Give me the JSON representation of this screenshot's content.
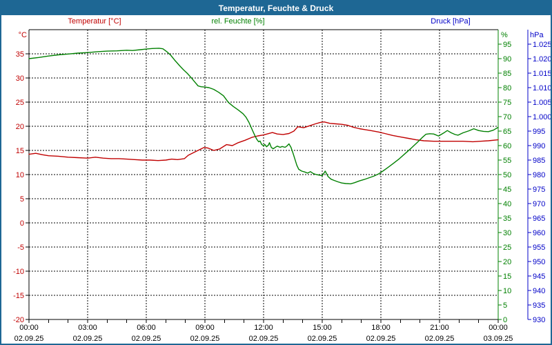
{
  "window": {
    "title": "Temperatur, Feuchte & Druck"
  },
  "colors": {
    "titlebar": "#1e6794",
    "temperature": "#c00000",
    "humidity": "#008000",
    "pressure": "#0000c8",
    "grid": "#000000",
    "background": "#ffffff"
  },
  "legend": [
    {
      "label": "Temperatur [°C]",
      "series": "temperature"
    },
    {
      "label": "rel. Feuchte [%]",
      "series": "humidity"
    },
    {
      "label": "Druck [hPa]",
      "series": "pressure"
    }
  ],
  "chart_data": {
    "type": "line",
    "title": "Temperatur, Feuchte & Druck",
    "grid": "dashed black, horizontal every 5 °C, vertical every 3 h",
    "x_axis": {
      "range_hours": [
        0,
        24
      ],
      "major_gridline_hours": [
        3,
        6,
        9,
        12,
        15,
        18,
        21
      ],
      "minor_tick_every_hours": 1,
      "tick_labels": [
        {
          "hour": 0,
          "time": "00:00",
          "date": "02.09.25"
        },
        {
          "hour": 3,
          "time": "03:00",
          "date": "02.09.25"
        },
        {
          "hour": 6,
          "time": "06:00",
          "date": "02.09.25"
        },
        {
          "hour": 9,
          "time": "09:00",
          "date": "02.09.25"
        },
        {
          "hour": 12,
          "time": "12:00",
          "date": "02.09.25"
        },
        {
          "hour": 15,
          "time": "15:00",
          "date": "02.09.25"
        },
        {
          "hour": 18,
          "time": "18:00",
          "date": "02.09.25"
        },
        {
          "hour": 21,
          "time": "21:00",
          "date": "02.09.25"
        },
        {
          "hour": 24,
          "time": "00:00",
          "date": "03.09.25"
        }
      ]
    },
    "y_axes": {
      "temperature": {
        "unit": "°C",
        "side": "left",
        "color": "#c00000",
        "range": [
          -20,
          40
        ],
        "tick_step": 5,
        "tick_values": [
          35,
          30,
          25,
          20,
          15,
          10,
          5,
          0,
          -5,
          -10,
          -15,
          -20
        ]
      },
      "humidity": {
        "unit": "%",
        "side": "right",
        "color": "#008000",
        "range": [
          0,
          100
        ],
        "tick_step": 5,
        "tick_values": [
          95,
          90,
          85,
          80,
          75,
          70,
          65,
          60,
          55,
          50,
          45,
          40,
          35,
          30,
          25,
          20,
          15,
          10,
          5,
          0
        ]
      },
      "pressure": {
        "unit": "hPa",
        "side": "right-outer",
        "color": "#0000c8",
        "range": [
          930,
          1030
        ],
        "tick_step": 5,
        "ticks": [
          {
            "value": 1025,
            "label": "1.025"
          },
          {
            "value": 1020,
            "label": "1.020"
          },
          {
            "value": 1015,
            "label": "1.015"
          },
          {
            "value": 1010,
            "label": "1.010"
          },
          {
            "value": 1005,
            "label": "1.005"
          },
          {
            "value": 1000,
            "label": "1.000"
          },
          {
            "value": 995,
            "label": "995"
          },
          {
            "value": 990,
            "label": "990"
          },
          {
            "value": 985,
            "label": "985"
          },
          {
            "value": 980,
            "label": "980"
          },
          {
            "value": 975,
            "label": "975"
          },
          {
            "value": 970,
            "label": "970"
          },
          {
            "value": 965,
            "label": "965"
          },
          {
            "value": 960,
            "label": "960"
          },
          {
            "value": 955,
            "label": "955"
          },
          {
            "value": 950,
            "label": "950"
          },
          {
            "value": 945,
            "label": "945"
          },
          {
            "value": 940,
            "label": "940"
          },
          {
            "value": 935,
            "label": "935"
          },
          {
            "value": 930,
            "label": "930"
          }
        ]
      }
    },
    "series": [
      {
        "id": "temperature",
        "name": "Temperatur",
        "unit": "°C",
        "color": "#c00000",
        "axis": "temperature",
        "points": [
          [
            0,
            14.2
          ],
          [
            0.35,
            14.4
          ],
          [
            0.7,
            14.1
          ],
          [
            1,
            13.9
          ],
          [
            1.5,
            13.8
          ],
          [
            2,
            13.6
          ],
          [
            2.5,
            13.5
          ],
          [
            3,
            13.4
          ],
          [
            3.4,
            13.6
          ],
          [
            3.8,
            13.4
          ],
          [
            4.2,
            13.3
          ],
          [
            4.6,
            13.3
          ],
          [
            5,
            13.2
          ],
          [
            5.4,
            13.1
          ],
          [
            5.8,
            13.0
          ],
          [
            6.2,
            13.0
          ],
          [
            6.6,
            12.9
          ],
          [
            7,
            13.0
          ],
          [
            7.3,
            13.2
          ],
          [
            7.6,
            13.1
          ],
          [
            7.95,
            13.3
          ],
          [
            8.15,
            14.0
          ],
          [
            8.45,
            14.6
          ],
          [
            8.7,
            15.1
          ],
          [
            8.95,
            15.6
          ],
          [
            9.15,
            15.5
          ],
          [
            9.45,
            15.0
          ],
          [
            9.75,
            15.3
          ],
          [
            10.1,
            16.2
          ],
          [
            10.4,
            16.0
          ],
          [
            10.7,
            16.6
          ],
          [
            11.05,
            17.1
          ],
          [
            11.4,
            17.7
          ],
          [
            11.7,
            18.0
          ],
          [
            12,
            18.2
          ],
          [
            12.45,
            18.7
          ],
          [
            12.7,
            18.4
          ],
          [
            13,
            18.3
          ],
          [
            13.3,
            18.5
          ],
          [
            13.55,
            19.0
          ],
          [
            13.75,
            19.9
          ],
          [
            14.05,
            19.7
          ],
          [
            14.35,
            20.1
          ],
          [
            14.65,
            20.5
          ],
          [
            14.9,
            20.8
          ],
          [
            15.1,
            20.9
          ],
          [
            15.4,
            20.6
          ],
          [
            15.7,
            20.5
          ],
          [
            16,
            20.4
          ],
          [
            16.3,
            20.2
          ],
          [
            16.6,
            19.8
          ],
          [
            16.9,
            19.5
          ],
          [
            17.2,
            19.3
          ],
          [
            17.5,
            19.1
          ],
          [
            17.9,
            18.8
          ],
          [
            18.2,
            18.5
          ],
          [
            18.6,
            18.1
          ],
          [
            19,
            17.8
          ],
          [
            19.4,
            17.5
          ],
          [
            19.8,
            17.2
          ],
          [
            20.2,
            17.0
          ],
          [
            20.7,
            16.9
          ],
          [
            21.2,
            16.9
          ],
          [
            21.7,
            16.9
          ],
          [
            22.2,
            16.9
          ],
          [
            22.7,
            16.8
          ],
          [
            23.1,
            16.9
          ],
          [
            23.5,
            17.0
          ],
          [
            24,
            17.2
          ]
        ]
      },
      {
        "id": "humidity",
        "name": "rel. Feuchte",
        "unit": "%",
        "color": "#008000",
        "axis": "humidity",
        "points": [
          [
            0,
            90.0
          ],
          [
            0.5,
            90.4
          ],
          [
            1,
            90.9
          ],
          [
            1.5,
            91.3
          ],
          [
            2,
            91.6
          ],
          [
            2.5,
            91.9
          ],
          [
            3,
            92.1
          ],
          [
            3.5,
            92.4
          ],
          [
            4,
            92.6
          ],
          [
            4.5,
            92.7
          ],
          [
            5,
            92.9
          ],
          [
            5.3,
            92.8
          ],
          [
            5.7,
            93.1
          ],
          [
            6,
            93.3
          ],
          [
            6.3,
            93.5
          ],
          [
            6.65,
            93.6
          ],
          [
            6.85,
            93.4
          ],
          [
            7.05,
            92.4
          ],
          [
            7.25,
            91.2
          ],
          [
            7.45,
            89.5
          ],
          [
            7.7,
            87.6
          ],
          [
            7.9,
            86.2
          ],
          [
            8.1,
            84.9
          ],
          [
            8.3,
            83.4
          ],
          [
            8.5,
            81.8
          ],
          [
            8.65,
            80.6
          ],
          [
            8.8,
            80.3
          ],
          [
            9,
            80.2
          ],
          [
            9.2,
            80.0
          ],
          [
            9.45,
            79.4
          ],
          [
            9.7,
            78.4
          ],
          [
            9.95,
            77.2
          ],
          [
            10.2,
            74.9
          ],
          [
            10.45,
            73.5
          ],
          [
            10.7,
            72.3
          ],
          [
            10.95,
            71.0
          ],
          [
            11.1,
            69.8
          ],
          [
            11.25,
            68.0
          ],
          [
            11.35,
            66.5
          ],
          [
            11.45,
            65.0
          ],
          [
            11.55,
            63.5
          ],
          [
            11.65,
            62.2
          ],
          [
            11.75,
            61.3
          ],
          [
            11.82,
            61.6
          ],
          [
            11.9,
            60.4
          ],
          [
            12,
            59.9
          ],
          [
            12.06,
            60.4
          ],
          [
            12.15,
            59.6
          ],
          [
            12.25,
            60.2
          ],
          [
            12.3,
            61.0
          ],
          [
            12.4,
            59.3
          ],
          [
            12.5,
            58.9
          ],
          [
            12.6,
            59.4
          ],
          [
            12.7,
            59.8
          ],
          [
            12.85,
            59.4
          ],
          [
            12.95,
            59.7
          ],
          [
            13.1,
            59.4
          ],
          [
            13.2,
            59.9
          ],
          [
            13.3,
            60.6
          ],
          [
            13.4,
            59.4
          ],
          [
            13.5,
            57.5
          ],
          [
            13.6,
            55.4
          ],
          [
            13.7,
            53.2
          ],
          [
            13.8,
            51.8
          ],
          [
            13.95,
            51.2
          ],
          [
            14.1,
            50.9
          ],
          [
            14.25,
            50.5
          ],
          [
            14.4,
            51.0
          ],
          [
            14.55,
            50.3
          ],
          [
            14.7,
            50.0
          ],
          [
            14.85,
            49.8
          ],
          [
            15,
            49.6
          ],
          [
            15.15,
            51.2
          ],
          [
            15.3,
            49.3
          ],
          [
            15.45,
            48.4
          ],
          [
            15.6,
            48.0
          ],
          [
            15.8,
            47.5
          ],
          [
            16,
            47.1
          ],
          [
            16.2,
            46.9
          ],
          [
            16.45,
            46.8
          ],
          [
            16.65,
            47.2
          ],
          [
            16.9,
            47.8
          ],
          [
            17.15,
            48.3
          ],
          [
            17.4,
            48.9
          ],
          [
            17.65,
            49.5
          ],
          [
            17.9,
            50.3
          ],
          [
            18.1,
            51.2
          ],
          [
            18.35,
            52.4
          ],
          [
            18.65,
            53.9
          ],
          [
            18.95,
            55.5
          ],
          [
            19.25,
            57.3
          ],
          [
            19.55,
            59.1
          ],
          [
            19.85,
            61.0
          ],
          [
            20.1,
            62.7
          ],
          [
            20.3,
            63.9
          ],
          [
            20.5,
            64.1
          ],
          [
            20.7,
            64.0
          ],
          [
            20.95,
            63.3
          ],
          [
            21.2,
            64.3
          ],
          [
            21.4,
            65.2
          ],
          [
            21.6,
            64.4
          ],
          [
            21.8,
            63.8
          ],
          [
            21.95,
            63.6
          ],
          [
            22.2,
            64.4
          ],
          [
            22.5,
            65.1
          ],
          [
            22.75,
            65.8
          ],
          [
            23,
            65.2
          ],
          [
            23.25,
            64.9
          ],
          [
            23.5,
            64.8
          ],
          [
            23.75,
            65.3
          ],
          [
            24,
            66.3
          ]
        ]
      }
    ]
  }
}
